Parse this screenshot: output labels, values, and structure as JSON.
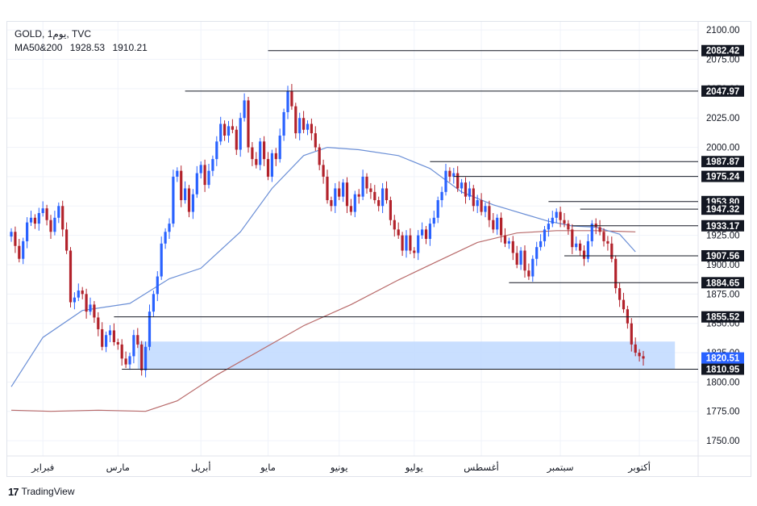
{
  "legend": {
    "symbol": "GOLD",
    "interval": "يوم1",
    "source": "TVC",
    "ma_label": "MA50&200",
    "ma50_value": "1928.53",
    "ma200_value": "1910.21"
  },
  "colors": {
    "up": "#2962ff",
    "down": "#b2222b",
    "ma50": "#6b8fd6",
    "ma200": "#b86a6a",
    "zone": "#bfd9ff",
    "grid": "#f0f3fa",
    "axis_text": "#131722",
    "label_bg": "#131722",
    "price_label_bg": "#2962ff"
  },
  "brand": {
    "logo_text": "TradingView"
  },
  "chart_data": {
    "type": "candlestick",
    "title": "GOLD, يوم1, TVC",
    "y_range": [
      1737,
      2107
    ],
    "y_ticks": [
      1750,
      1775,
      1800,
      1825,
      1850,
      1875,
      1900,
      1925,
      1950,
      1975,
      2000,
      2025,
      2050,
      2075,
      2100
    ],
    "y_tick_labels": [
      "1750.00",
      "1775.00",
      "1800.00",
      "1825.00",
      "1850.00",
      "1875.00",
      "1900.00",
      "1925.00",
      "1950.00",
      "1975.00",
      "2000.00",
      "2025.00",
      "2050.00",
      "2075.00",
      "2100.00"
    ],
    "x_range": [
      0,
      167
    ],
    "month_labels": [
      {
        "label": "فبراير",
        "x": 8
      },
      {
        "label": "مارس",
        "x": 27
      },
      {
        "label": "أبريل",
        "x": 48
      },
      {
        "label": "مايو",
        "x": 65
      },
      {
        "label": "يونيو",
        "x": 83
      },
      {
        "label": "يوليو",
        "x": 102
      },
      {
        "label": "أغسطس",
        "x": 119
      },
      {
        "label": "سبتمبر",
        "x": 139
      },
      {
        "label": "أكتوبر",
        "x": 159
      }
    ],
    "candle_closes": [
      1928,
      1916,
      1905,
      1920,
      1936,
      1940,
      1935,
      1944,
      1948,
      1938,
      1928,
      1940,
      1950,
      1930,
      1912,
      1868,
      1872,
      1878,
      1875,
      1860,
      1866,
      1855,
      1845,
      1830,
      1840,
      1844,
      1834,
      1832,
      1820,
      1815,
      1822,
      1840,
      1832,
      1810,
      1830,
      1860,
      1875,
      1890,
      1918,
      1928,
      1935,
      1975,
      1980,
      1955,
      1965,
      1945,
      1960,
      1978,
      1985,
      1968,
      1980,
      1990,
      2005,
      2020,
      2010,
      2018,
      2015,
      1998,
      2025,
      2040,
      2000,
      1990,
      1985,
      2005,
      1990,
      1975,
      1995,
      1990,
      2010,
      2030,
      2048,
      2035,
      2012,
      2025,
      2015,
      2020,
      2012,
      2000,
      1985,
      1975,
      1955,
      1950,
      1965,
      1958,
      1970,
      1950,
      1945,
      1960,
      1958,
      1975,
      1965,
      1962,
      1955,
      1950,
      1965,
      1955,
      1938,
      1930,
      1925,
      1912,
      1925,
      1912,
      1910,
      1925,
      1930,
      1922,
      1935,
      1940,
      1955,
      1962,
      1980,
      1975,
      1978,
      1965,
      1970,
      1958,
      1965,
      1950,
      1955,
      1945,
      1950,
      1938,
      1930,
      1940,
      1925,
      1918,
      1920,
      1910,
      1900,
      1912,
      1895,
      1890,
      1905,
      1915,
      1920,
      1930,
      1935,
      1940,
      1945,
      1938,
      1935,
      1930,
      1915,
      1918,
      1912,
      1905,
      1920,
      1935,
      1932,
      1928,
      1920,
      1918,
      1905,
      1880,
      1870,
      1862,
      1850,
      1832,
      1825,
      1822,
      1820
    ],
    "ma50_curve": [
      [
        0,
        1796
      ],
      [
        8,
        1838
      ],
      [
        18,
        1861
      ],
      [
        30,
        1867
      ],
      [
        40,
        1888
      ],
      [
        48,
        1897
      ],
      [
        58,
        1928
      ],
      [
        66,
        1965
      ],
      [
        74,
        1993
      ],
      [
        80,
        2000
      ],
      [
        88,
        1998
      ],
      [
        98,
        1993
      ],
      [
        106,
        1982
      ],
      [
        114,
        1962
      ],
      [
        122,
        1951
      ],
      [
        130,
        1943
      ],
      [
        136,
        1937
      ],
      [
        142,
        1933
      ],
      [
        148,
        1932
      ],
      [
        154,
        1926
      ],
      [
        158,
        1911
      ]
    ],
    "ma200_curve": [
      [
        0,
        1776
      ],
      [
        10,
        1775
      ],
      [
        22,
        1776
      ],
      [
        34,
        1775
      ],
      [
        42,
        1784
      ],
      [
        52,
        1806
      ],
      [
        62,
        1825
      ],
      [
        74,
        1848
      ],
      [
        86,
        1866
      ],
      [
        98,
        1887
      ],
      [
        108,
        1903
      ],
      [
        118,
        1919
      ],
      [
        128,
        1927
      ],
      [
        138,
        1929
      ],
      [
        148,
        1929
      ],
      [
        158,
        1928
      ]
    ],
    "support_zone": {
      "from": 1810.95,
      "to": 1834.5,
      "x_start": 32,
      "x_end": 168
    },
    "levels": [
      {
        "value": 2082.42,
        "label": "2082.42",
        "x_start": 65
      },
      {
        "value": 2047.97,
        "label": "2047.97",
        "x_start": 44
      },
      {
        "value": 1987.87,
        "label": "1987.87",
        "x_start": 106
      },
      {
        "value": 1975.24,
        "label": "1975.24",
        "x_start": 112
      },
      {
        "value": 1953.8,
        "label": "1953.80",
        "x_start": 136
      },
      {
        "value": 1947.32,
        "label": "1947.32",
        "x_start": 144
      },
      {
        "value": 1933.17,
        "label": "1933.17",
        "x_start": 142
      },
      {
        "value": 1907.56,
        "label": "1907.56",
        "x_start": 140
      },
      {
        "value": 1884.65,
        "label": "1884.65",
        "x_start": 126
      },
      {
        "value": 1855.52,
        "label": "1855.52",
        "x_start": 26
      },
      {
        "value": 1810.95,
        "label": "1810.95",
        "x_start": 28
      }
    ],
    "current_price": {
      "value": 1820.51,
      "label": "1820.51"
    }
  }
}
